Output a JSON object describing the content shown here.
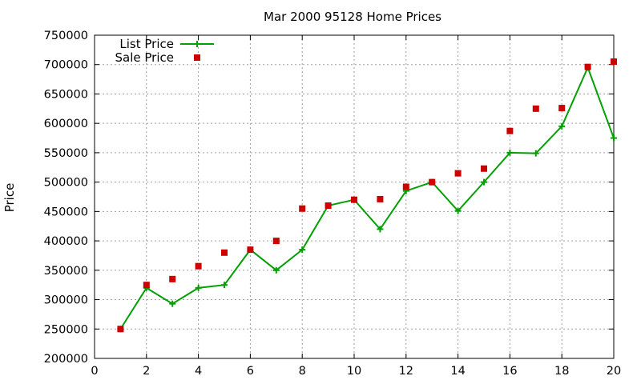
{
  "chart_data": {
    "type": "line",
    "title": "Mar 2000 95128 Home Prices",
    "xlabel": "",
    "ylabel": "Price",
    "xlim": [
      0,
      20
    ],
    "ylim": [
      200000,
      750000
    ],
    "xticks": [
      0,
      2,
      4,
      6,
      8,
      10,
      12,
      14,
      16,
      18,
      20
    ],
    "yticks": [
      200000,
      250000,
      300000,
      350000,
      400000,
      450000,
      500000,
      550000,
      600000,
      650000,
      700000,
      750000
    ],
    "grid": true,
    "legend_position": "top-left",
    "series": [
      {
        "name": "List Price",
        "style": "line+cross",
        "color": "#00a000",
        "x": [
          1,
          2,
          3,
          4,
          5,
          6,
          7,
          8,
          9,
          10,
          11,
          12,
          13,
          14,
          15,
          16,
          17,
          18,
          19,
          20
        ],
        "y": [
          250000,
          320000,
          293000,
          320000,
          325000,
          385000,
          350000,
          385000,
          460000,
          470000,
          420000,
          485000,
          500000,
          451000,
          500000,
          550000,
          549000,
          595000,
          695000,
          575000
        ]
      },
      {
        "name": "Sale Price",
        "style": "square",
        "color": "#cc0000",
        "x": [
          1,
          2,
          3,
          4,
          5,
          6,
          7,
          8,
          9,
          10,
          11,
          12,
          13,
          14,
          15,
          16,
          17,
          18,
          19,
          20
        ],
        "y": [
          250000,
          325000,
          335000,
          357000,
          380000,
          385000,
          400000,
          455000,
          460000,
          470000,
          471000,
          492000,
          500000,
          515000,
          523000,
          587000,
          625000,
          626000,
          696000,
          705000
        ]
      }
    ]
  }
}
